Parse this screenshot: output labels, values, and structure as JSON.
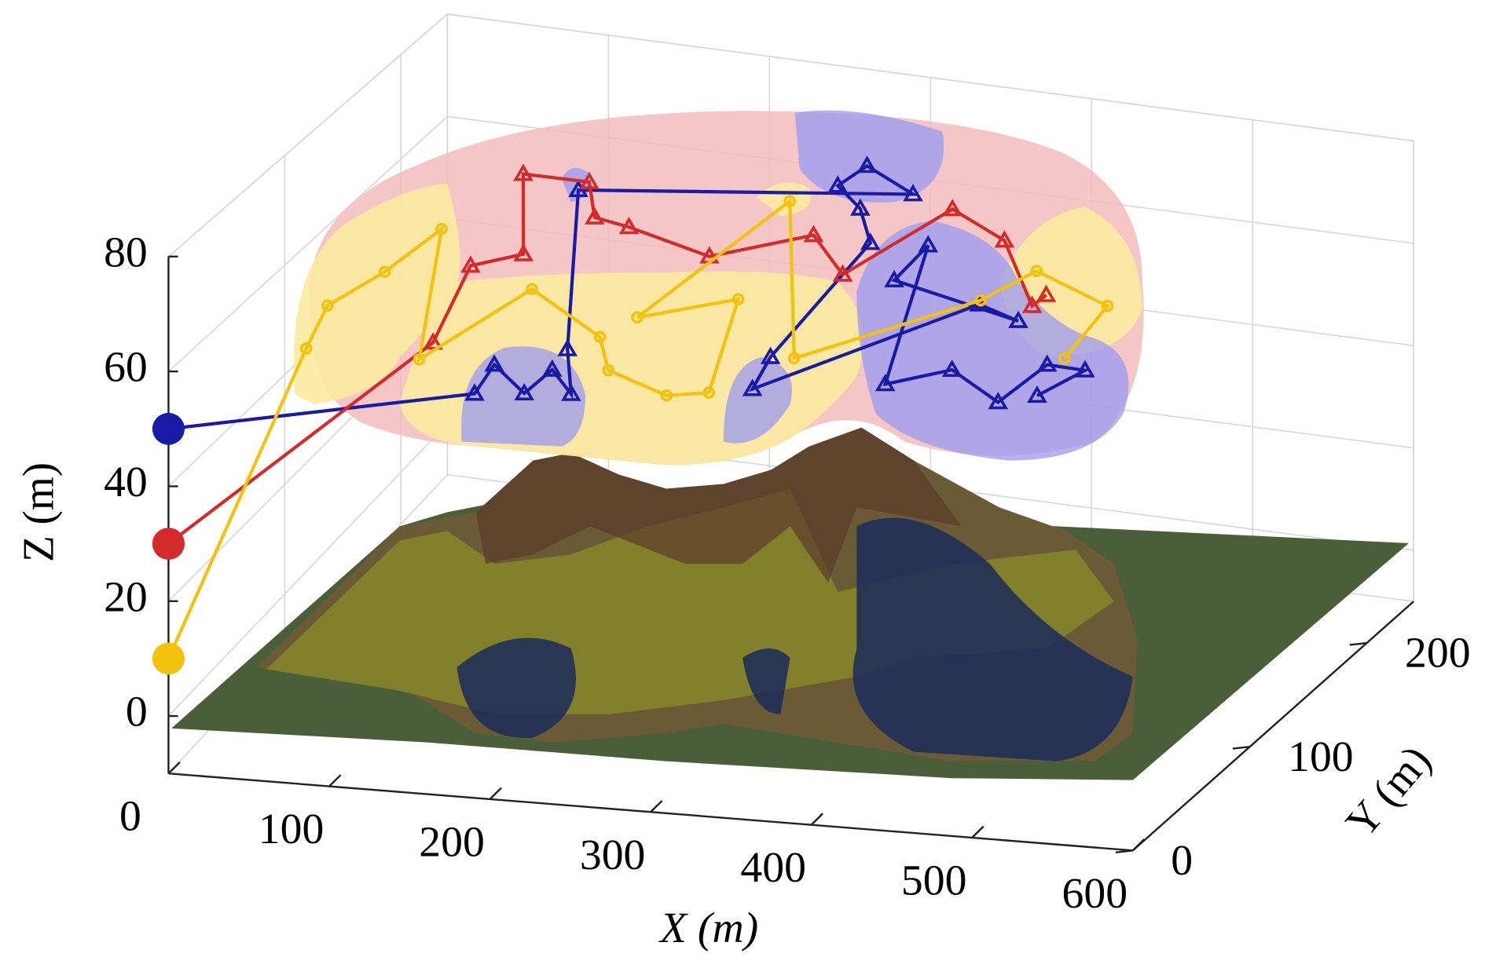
{
  "chart_data": {
    "type": "path3d",
    "xlabel": "X (m)",
    "ylabel": "Y (m)",
    "zlabel": "Z (m)",
    "xlim": [
      0,
      600
    ],
    "ylim": [
      0,
      240
    ],
    "zlim": [
      -10,
      80
    ],
    "xticks": [
      0,
      100,
      200,
      300,
      400,
      500,
      600
    ],
    "yticks": [
      0,
      100,
      200
    ],
    "zticks": [
      0,
      20,
      40,
      60,
      80
    ],
    "grid": true,
    "series": [
      {
        "color": "#1a1aa8",
        "marker": "triangle",
        "x": [
          0,
          189,
          181,
          217,
          217,
          244,
          212,
          116,
          300,
          257,
          254,
          281,
          309,
          331,
          343,
          410,
          443,
          347,
          342,
          414,
          441,
          490,
          490,
          515,
          507
        ],
        "y": [
          0,
          2,
          30,
          6,
          30,
          9,
          50,
          192,
          225,
          245,
          224,
          206,
          176,
          60,
          28,
          130,
          118,
          144,
          180,
          44,
          64,
          36,
          78,
          76,
          46
        ],
        "z": [
          50,
          60,
          60,
          60,
          60,
          60,
          60,
          60,
          60,
          60,
          60,
          60,
          60,
          60,
          60,
          60,
          60,
          60,
          60,
          60,
          60,
          60,
          60,
          60,
          60
        ]
      },
      {
        "color": "#d42a2a",
        "marker": "triangle",
        "x": [
          0,
          132,
          104,
          126,
          76,
          117,
          142,
          167,
          230,
          273,
          315,
          331,
          380,
          440,
          440
        ],
        "y": [
          0,
          45,
          116,
          131,
          200,
          200,
          170,
          165,
          147,
          177,
          144,
          216,
          193,
          134,
          146
        ],
        "z": [
          30,
          60,
          60,
          60,
          60,
          60,
          60,
          60,
          60,
          60,
          60,
          60,
          60,
          60,
          60
        ]
      },
      {
        "color": "#f2c20c",
        "marker": "circle",
        "x": [
          0,
          64,
          49,
          60,
          65,
          135,
          153,
          222,
          249,
          299,
          321,
          274,
          230,
          238,
          345,
          408,
          418,
          481,
          495
        ],
        "y": [
          0,
          30,
          69,
          103,
          145,
          29,
          101,
          64,
          34,
          15,
          21,
          111,
          85,
          205,
          61,
          134,
          168,
          142,
          86
        ],
        "z": [
          10,
          60,
          60,
          60,
          60,
          60,
          60,
          60,
          60,
          60,
          60,
          60,
          60,
          60,
          60,
          60,
          60,
          60,
          60
        ]
      }
    ]
  }
}
